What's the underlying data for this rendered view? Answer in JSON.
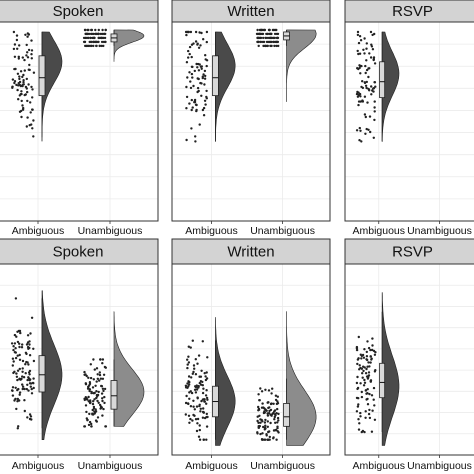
{
  "chart_data": {
    "type": "raincloud",
    "grid": true,
    "legend": "none",
    "colors": {
      "Ambiguous": "#4a4a4a",
      "Unambiguous": "#8c8c8c",
      "strip_fill": "#d3d3d3",
      "panel_border": "#333333",
      "grid": "#ebebeb",
      "points": "#222222"
    },
    "rows": [
      {
        "panels": [
          {
            "title": "Spoken",
            "categories": [
              "Ambiguous",
              "Unambiguous"
            ],
            "groups": [
              {
                "name": "Ambiguous",
                "median": 0.72,
                "q1": 0.63,
                "q3": 0.83,
                "min": 0.4,
                "max": 0.95,
                "n": 90,
                "range": [
                  0.42,
                  0.95
                ],
                "mode": 0.8
              },
              {
                "name": "Unambiguous",
                "median": 0.92,
                "q1": 0.9,
                "q3": 0.94,
                "min": 0.88,
                "max": 0.96,
                "n": 90,
                "range": [
                  0.8,
                  0.96
                ],
                "mode": 0.93
              }
            ]
          },
          {
            "title": "Written",
            "categories": [
              "Ambiguous",
              "Unambiguous"
            ],
            "groups": [
              {
                "name": "Ambiguous",
                "median": 0.72,
                "q1": 0.63,
                "q3": 0.83,
                "min": 0.4,
                "max": 0.95,
                "n": 90,
                "range": [
                  0.4,
                  0.95
                ],
                "mode": 0.78
              },
              {
                "name": "Unambiguous",
                "median": 0.93,
                "q1": 0.91,
                "q3": 0.95,
                "min": 0.88,
                "max": 0.96,
                "n": 90,
                "range": [
                  0.6,
                  0.96
                ],
                "mode": 0.94
              }
            ]
          },
          {
            "title": "RSVP",
            "categories": [
              "Ambiguous",
              "Unambiguous"
            ],
            "groups": [
              {
                "name": "Ambiguous",
                "median": 0.7,
                "q1": 0.62,
                "q3": 0.8,
                "min": 0.4,
                "max": 0.95,
                "n": 90,
                "range": [
                  0.4,
                  0.95
                ],
                "mode": 0.74
              }
            ]
          }
        ]
      },
      {
        "panels": [
          {
            "title": "Spoken",
            "categories": [
              "Ambiguous",
              "Unambiguous"
            ],
            "groups": [
              {
                "name": "Ambiguous",
                "median": 0.42,
                "q1": 0.33,
                "q3": 0.52,
                "min": 0.14,
                "max": 0.82,
                "n": 110,
                "range": [
                  0.08,
                  0.86
                ],
                "mode": 0.42
              },
              {
                "name": "Unambiguous",
                "median": 0.31,
                "q1": 0.24,
                "q3": 0.39,
                "min": 0.15,
                "max": 0.5,
                "n": 110,
                "range": [
                  0.15,
                  0.75
                ],
                "mode": 0.33
              }
            ]
          },
          {
            "title": "Written",
            "categories": [
              "Ambiguous",
              "Unambiguous"
            ],
            "groups": [
              {
                "name": "Ambiguous",
                "median": 0.28,
                "q1": 0.2,
                "q3": 0.36,
                "min": 0.08,
                "max": 0.6,
                "n": 110,
                "range": [
                  0.05,
                  0.72
                ],
                "mode": 0.28
              },
              {
                "name": "Unambiguous",
                "median": 0.2,
                "q1": 0.15,
                "q3": 0.27,
                "min": 0.08,
                "max": 0.4,
                "n": 110,
                "range": [
                  0.05,
                  0.75
                ],
                "mode": 0.2
              }
            ]
          },
          {
            "title": "RSVP",
            "categories": [
              "Ambiguous",
              "Unambiguous"
            ],
            "groups": [
              {
                "name": "Ambiguous",
                "median": 0.38,
                "q1": 0.3,
                "q3": 0.48,
                "min": 0.12,
                "max": 0.75,
                "n": 100,
                "range": [
                  0.05,
                  0.85
                ],
                "mode": 0.36
              }
            ]
          }
        ]
      }
    ]
  }
}
